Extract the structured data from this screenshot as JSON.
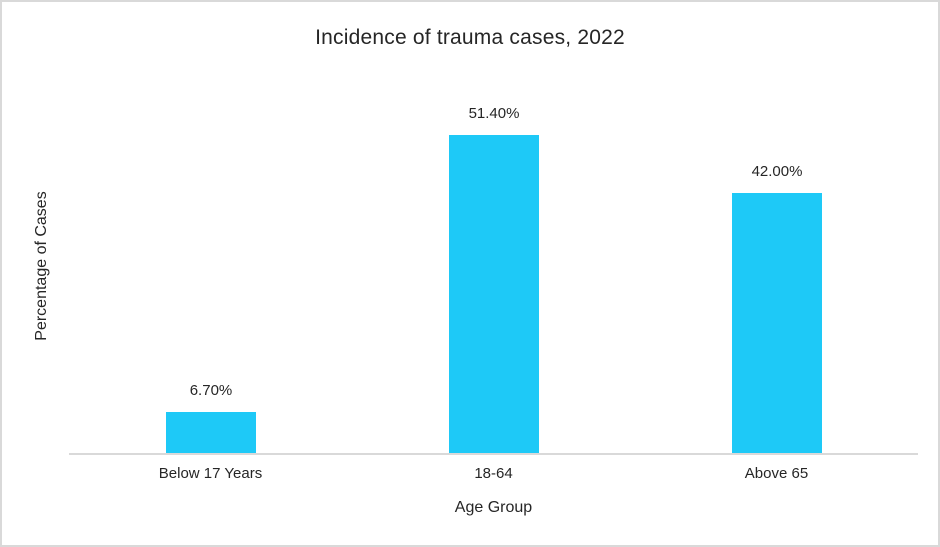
{
  "chart_data": {
    "type": "bar",
    "title": "Incidence of trauma cases, 2022",
    "categories": [
      "Below 17 Years",
      "18-64",
      "Above 65"
    ],
    "values": [
      6.7,
      51.4,
      42.0
    ],
    "value_labels": [
      "6.70%",
      "51.40%",
      "42.00%"
    ],
    "xlabel": "Age Group",
    "ylabel": "Percentage of Cases",
    "ylim": [
      0,
      60
    ],
    "grid": false,
    "legend": "none",
    "y_tick_labels_visible": false,
    "colors": {
      "bar": "#1ec9f7",
      "axis_line": "#d9d9d9",
      "frame_border": "#d9d9d9",
      "text": "#262626",
      "background": "#ffffff"
    }
  }
}
